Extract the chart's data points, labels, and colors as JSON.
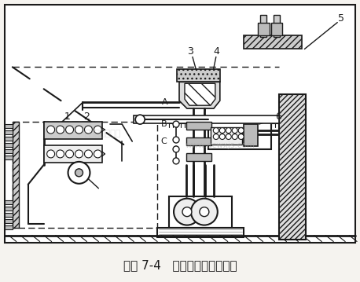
{
  "title": "补图 7-4   刚性反馈液压调速器",
  "bg_color": "#ffffff",
  "outer_bg": "#f5f3ef",
  "line_color": "#1a1a1a",
  "fig_width": 4.58,
  "fig_height": 3.59,
  "dpi": 100,
  "watermark1": "www.qcwxjs.com",
  "watermark2": "汽车维修技术网"
}
